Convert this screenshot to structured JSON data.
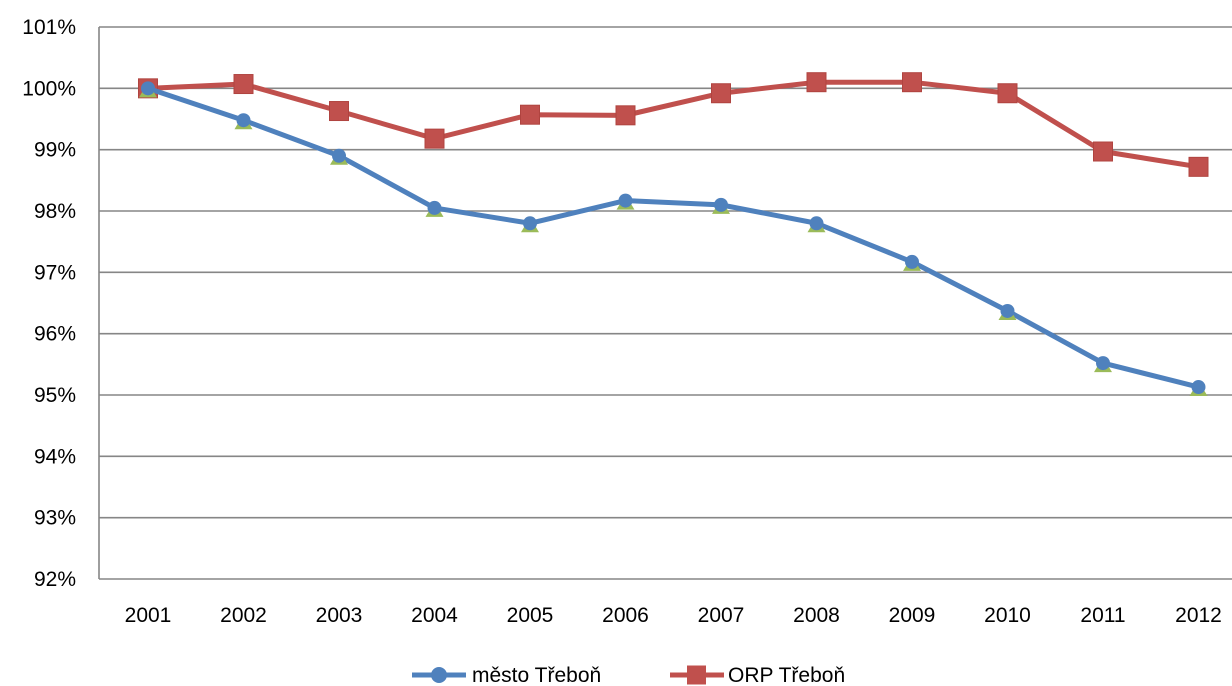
{
  "chart_data": {
    "type": "line",
    "title": "",
    "xlabel": "",
    "ylabel": "",
    "categories": [
      "2001",
      "2002",
      "2003",
      "2004",
      "2005",
      "2006",
      "2007",
      "2008",
      "2009",
      "2010",
      "2011",
      "2012"
    ],
    "y_ticks": [
      "92%",
      "93%",
      "94%",
      "95%",
      "96%",
      "97%",
      "98%",
      "99%",
      "100%",
      "101%"
    ],
    "ylim": [
      92,
      101
    ],
    "grid": true,
    "legend_position": "bottom",
    "series": [
      {
        "name": "město Třeboň",
        "color": "#4F81BD",
        "marker": "circle",
        "values": [
          100.0,
          99.48,
          98.9,
          98.05,
          97.8,
          98.17,
          98.1,
          97.8,
          97.17,
          96.37,
          95.52,
          95.13
        ]
      },
      {
        "name": "ORP Třeboň",
        "color": "#C0504D",
        "marker": "square",
        "values": [
          100.0,
          100.07,
          99.63,
          99.18,
          99.57,
          99.56,
          99.92,
          100.1,
          100.1,
          99.92,
          98.97,
          98.72
        ]
      }
    ]
  }
}
